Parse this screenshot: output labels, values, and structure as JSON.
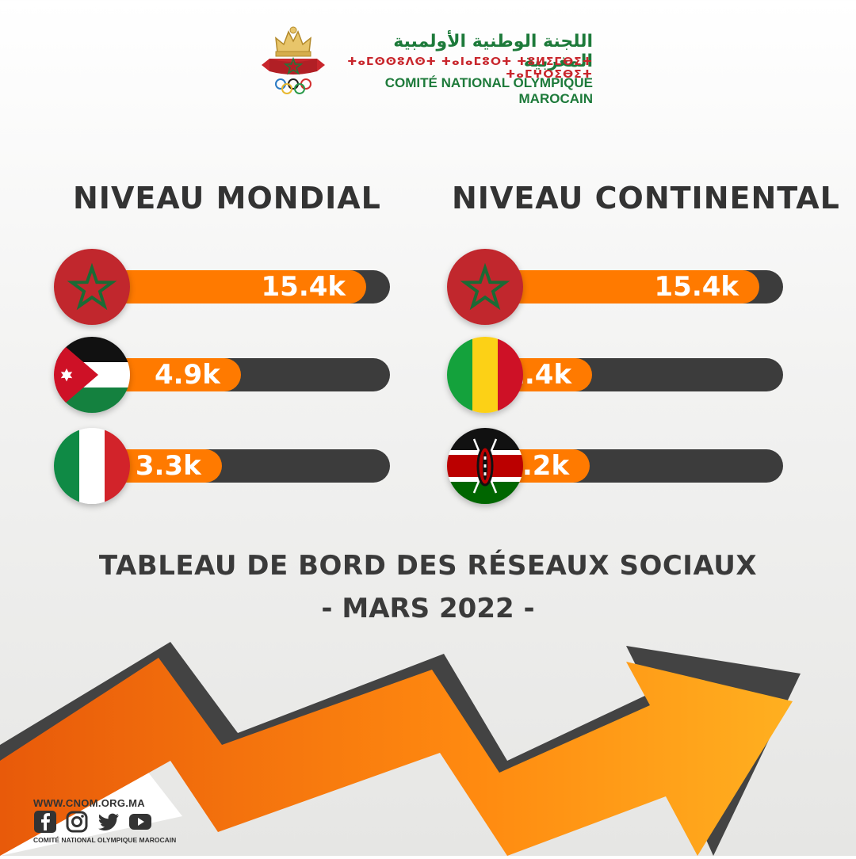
{
  "header": {
    "arabic_name": "اللجنة الوطنية الأولمبية المغربية",
    "tifinagh_name": "ⵜⴰⵎⵙⵙⵓⴷⵙⵜ ⵜⴰⵏⴰⵎⵓⵔⵜ ⵜⵓⵍⵉⵎⴱⵉⵜ ⵜⴰⵎⵖⵔⵉⴱⵉⵜ",
    "french_name": "COMITÉ NATIONAL OLYMPIQUE MAROCAIN"
  },
  "chart_data": [
    {
      "type": "bar",
      "title": "NIVEAU MONDIAL",
      "categories": [
        "Morocco",
        "Jordan",
        "Italy"
      ],
      "values": [
        15.4,
        4.9,
        3.3
      ],
      "value_labels": [
        "15.4k",
        "4.9k",
        "3.3k"
      ],
      "flags": [
        "morocco-flag",
        "jordan-flag",
        "italy-flag"
      ],
      "xlim": [
        0,
        15.4
      ]
    },
    {
      "type": "bar",
      "title": "NIVEAU CONTINENTAL",
      "categories": [
        "Morocco",
        "Mali",
        "Kenya"
      ],
      "values": [
        15.4,
        1.4,
        1.2
      ],
      "value_labels": [
        "15.4k",
        "1.4k",
        "1.2k"
      ],
      "flags": [
        "morocco-flag",
        "mali-flag",
        "kenya-flag"
      ],
      "xlim": [
        0,
        15.4
      ]
    }
  ],
  "dashboard": {
    "title": "TABLEAU DE BORD DES RÉSEAUX SOCIAUX",
    "date": "- MARS 2022 -"
  },
  "footer": {
    "url": "WWW.CNOM.ORG.MA",
    "org": "COMITÉ NATIONAL OLYMPIQUE MAROCAIN",
    "social_icons": [
      "facebook-icon",
      "instagram-icon",
      "twitter-icon",
      "youtube-icon"
    ]
  },
  "colors": {
    "bar_fill": "#ff7a00",
    "bar_track": "#3c3c3c",
    "text": "#333333",
    "logo_green": "#1d7a3a",
    "logo_red": "#c8262c"
  }
}
